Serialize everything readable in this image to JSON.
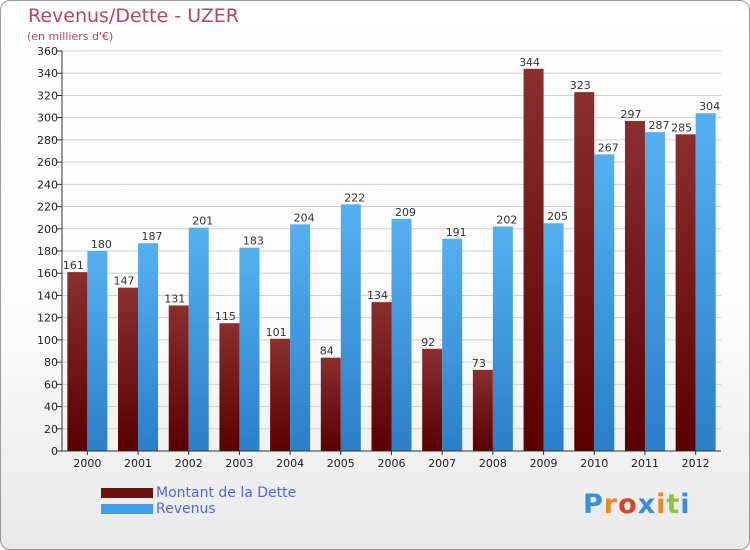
{
  "header": {
    "title": "Revenus/Dette - UZER",
    "subtitle": "(en milliers d'€)"
  },
  "legend": {
    "items": [
      {
        "label": "Montant de la Dette",
        "color": "#6b0f0f"
      },
      {
        "label": "Revenus",
        "color": "#3f9fe6"
      }
    ]
  },
  "logo": {
    "text": "Proxiti",
    "colors": [
      "#3a8fd8",
      "#e88a2a",
      "#d4452a",
      "#3a8fd8",
      "#e88a2a",
      "#8cc63f",
      "#3a8fd8"
    ]
  },
  "chart_data": {
    "type": "bar",
    "categories": [
      "2000",
      "2001",
      "2002",
      "2003",
      "2004",
      "2005",
      "2006",
      "2007",
      "2008",
      "2009",
      "2010",
      "2011",
      "2012"
    ],
    "series": [
      {
        "name": "Montant de la Dette",
        "values": [
          161,
          147,
          131,
          115,
          101,
          84,
          134,
          92,
          73,
          344,
          323,
          297,
          285
        ],
        "color": "#7a1f1f"
      },
      {
        "name": "Revenus",
        "values": [
          180,
          187,
          201,
          183,
          204,
          222,
          209,
          191,
          202,
          205,
          267,
          287,
          304
        ],
        "color": "#3f9fe6"
      }
    ],
    "ylim": [
      0,
      360
    ],
    "yticks": [
      0,
      20,
      40,
      60,
      80,
      100,
      120,
      140,
      160,
      180,
      200,
      220,
      240,
      260,
      280,
      300,
      320,
      340,
      360
    ],
    "grid": true,
    "legend_position": "bottom-left"
  }
}
